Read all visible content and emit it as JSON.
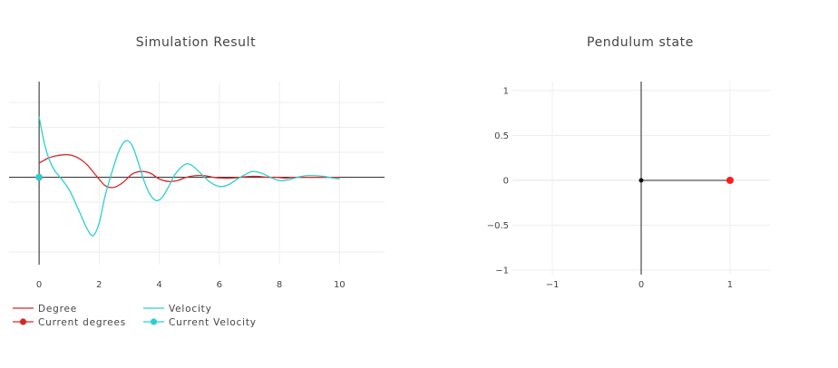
{
  "colors": {
    "degree": "#d62728",
    "velocity": "#2ccfcf",
    "pendulum_rod": "#555555",
    "pendulum_bob": "#ff1a1a",
    "pivot": "#111111"
  },
  "chart_data": [
    {
      "type": "line",
      "title": "Simulation Result",
      "xlabel": "",
      "ylabel": "",
      "xlim": [
        -1,
        11.5
      ],
      "ylim": [
        -1.05,
        1.15
      ],
      "x_ticks": [
        "0",
        "2",
        "4",
        "6",
        "8",
        "10"
      ],
      "y_tick_labels_shown": false,
      "grid": true,
      "legend_position": "bottom-left",
      "series": [
        {
          "name": "Degree",
          "color": "#d62728",
          "mode": "lines",
          "x": [
            0,
            0.3,
            0.6,
            0.8,
            1.0,
            1.2,
            1.4,
            1.6,
            1.9,
            2.2,
            2.5,
            2.8,
            3.1,
            3.4,
            3.7,
            4.0,
            4.3,
            4.6,
            4.9,
            5.2,
            5.5,
            5.8,
            6.1,
            6.4,
            6.7,
            7.0,
            7.3,
            7.6,
            7.9,
            8.2,
            8.5,
            8.8,
            9.1,
            9.4,
            9.7,
            10.0
          ],
          "y": [
            0.17,
            0.23,
            0.26,
            0.27,
            0.27,
            0.25,
            0.21,
            0.15,
            0.02,
            -0.1,
            -0.12,
            -0.06,
            0.04,
            0.07,
            0.05,
            -0.02,
            -0.05,
            -0.04,
            0.0,
            0.02,
            0.02,
            0.0,
            -0.01,
            -0.01,
            0.0,
            0.01,
            0.01,
            0.0,
            0.0,
            -0.01,
            0.0,
            0.0,
            0.0,
            0.0,
            0.0,
            0.0
          ]
        },
        {
          "name": "Velocity",
          "color": "#2ccfcf",
          "mode": "lines",
          "x": [
            0,
            0.15,
            0.3,
            0.5,
            0.7,
            1.0,
            1.3,
            1.6,
            1.8,
            2.0,
            2.2,
            2.5,
            2.7,
            2.9,
            3.1,
            3.3,
            3.5,
            3.7,
            3.9,
            4.1,
            4.3,
            4.5,
            4.7,
            4.9,
            5.1,
            5.4,
            5.7,
            6.0,
            6.3,
            6.6,
            6.9,
            7.1,
            7.4,
            7.7,
            8.0,
            8.3,
            8.6,
            8.9,
            9.2,
            9.5,
            9.8,
            10.0
          ],
          "y": [
            0.73,
            0.45,
            0.25,
            0.09,
            0.0,
            -0.15,
            -0.38,
            -0.62,
            -0.7,
            -0.55,
            -0.22,
            0.15,
            0.35,
            0.44,
            0.38,
            0.18,
            -0.05,
            -0.21,
            -0.28,
            -0.24,
            -0.12,
            0.02,
            0.11,
            0.16,
            0.14,
            0.04,
            -0.06,
            -0.11,
            -0.09,
            -0.02,
            0.04,
            0.07,
            0.05,
            0.0,
            -0.04,
            -0.03,
            0.0,
            0.02,
            0.02,
            0.01,
            -0.01,
            -0.02
          ]
        },
        {
          "name": "Current degrees",
          "color": "#d62728",
          "mode": "lines+markers",
          "x": [
            0
          ],
          "y": [
            0
          ]
        },
        {
          "name": "Current Velocity",
          "color": "#2ccfcf",
          "mode": "lines+markers",
          "x": [
            0
          ],
          "y": [
            0
          ]
        }
      ]
    },
    {
      "type": "scatter",
      "title": "Pendulum state",
      "xlabel": "",
      "ylabel": "",
      "xlim": [
        -1.45,
        1.45
      ],
      "ylim": [
        -1.05,
        1.1
      ],
      "x_ticks": [
        "−1",
        "0",
        "1"
      ],
      "y_ticks": [
        "1",
        "0.5",
        "0",
        "−0.5",
        "−1"
      ],
      "grid": true,
      "rod": {
        "from": [
          0,
          0
        ],
        "to": [
          1,
          0
        ]
      },
      "pivot": [
        0,
        0
      ],
      "bob": [
        1,
        0
      ]
    }
  ]
}
